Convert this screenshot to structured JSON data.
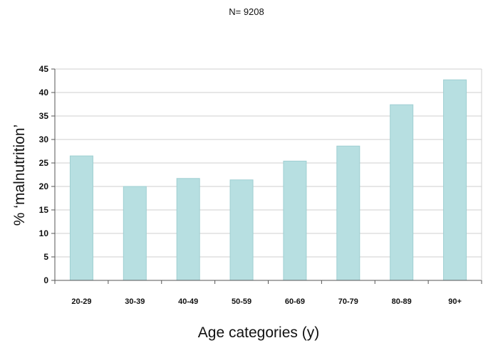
{
  "chart_data": {
    "type": "bar",
    "title": "N= 9208",
    "xlabel": "Age categories (y)",
    "ylabel": "% ‘malnutrition’",
    "categories": [
      "20-29",
      "30-39",
      "40-49",
      "50-59",
      "60-69",
      "70-79",
      "80-89",
      "90+"
    ],
    "values": [
      26.5,
      20.0,
      21.7,
      21.4,
      25.4,
      28.6,
      37.4,
      42.7
    ],
    "ylim": [
      0,
      45
    ],
    "yticks": [
      "0",
      "5",
      "10",
      "15",
      "20",
      "25",
      "30",
      "35",
      "40",
      "45"
    ],
    "grid": true,
    "legend": "none",
    "bar_color": "#b7dfe1",
    "bar_edge_color": "#9fcfd2"
  }
}
